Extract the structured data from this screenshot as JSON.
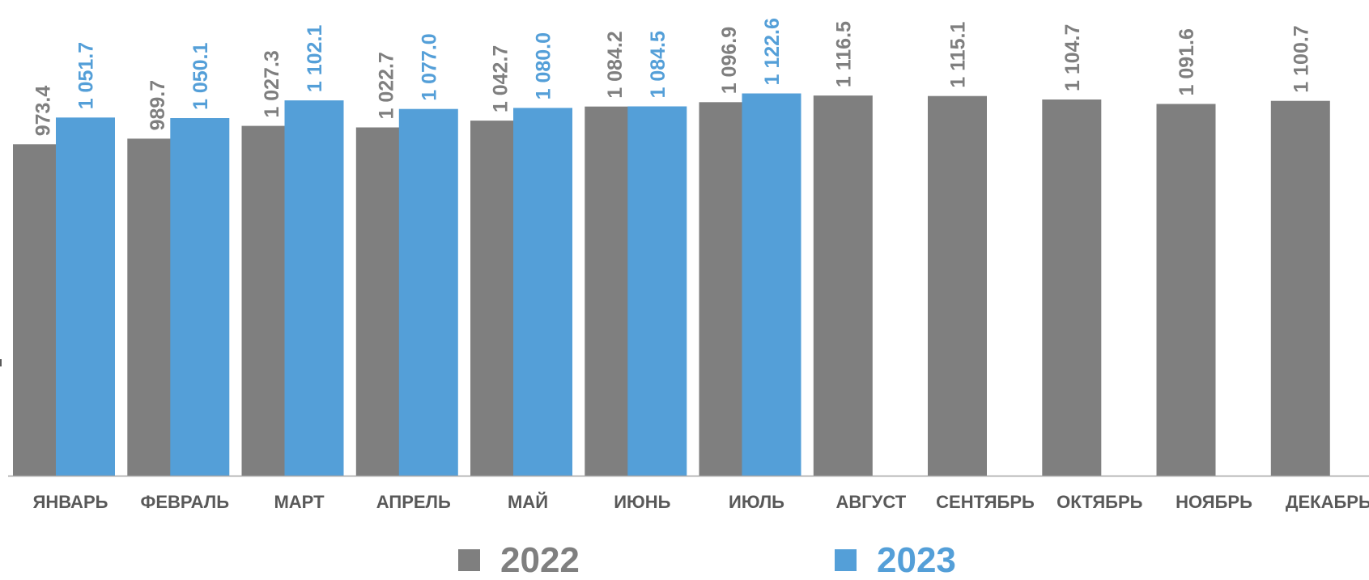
{
  "colors": {
    "series_2022": "#7f7f7f",
    "series_2023": "#549fd8",
    "label_2022": "#7f7f7f",
    "label_2023": "#549fd8",
    "axis_line": "#a6a6a6",
    "category_text": "#595959"
  },
  "legend": [
    {
      "name": "2022",
      "color": "#7f7f7f"
    },
    {
      "name": "2023",
      "color": "#549fd8"
    }
  ],
  "chart_data": {
    "type": "bar",
    "title": "",
    "xlabel": "",
    "ylabel": "",
    "ylim": [
      0,
      1150
    ],
    "grid": false,
    "legend_position": "bottom",
    "categories": [
      "ЯНВАРЬ",
      "ФЕВРАЛЬ",
      "МАРТ",
      "АПРЕЛЬ",
      "МАЙ",
      "ИЮНЬ",
      "ИЮЛЬ",
      "АВГУСТ",
      "СЕНТЯБРЬ",
      "ОКТЯБРЬ",
      "НОЯБРЬ",
      "ДЕКАБРЬ"
    ],
    "series": [
      {
        "name": "2022",
        "values": [
          973.4,
          989.7,
          1027.3,
          1022.7,
          1042.7,
          1084.2,
          1096.9,
          1116.5,
          1115.1,
          1104.7,
          1091.6,
          1100.7
        ],
        "labels": [
          "973.4",
          "989.7",
          "1 027.3",
          "1 022.7",
          "1 042.7",
          "1 084.2",
          "1 096.9",
          "1 116.5",
          "1 115.1",
          "1 104.7",
          "1 091.6",
          "1 100.7"
        ]
      },
      {
        "name": "2023",
        "values": [
          1051.7,
          1050.1,
          1102.1,
          1077.0,
          1080.0,
          1084.5,
          1122.6,
          null,
          null,
          null,
          null,
          null
        ],
        "labels": [
          "1 051.7",
          "1 050.1",
          "1 102.1",
          "1 077.0",
          "1 080.0",
          "1 084.5",
          "1 122.6",
          null,
          null,
          null,
          null,
          null
        ]
      }
    ]
  }
}
